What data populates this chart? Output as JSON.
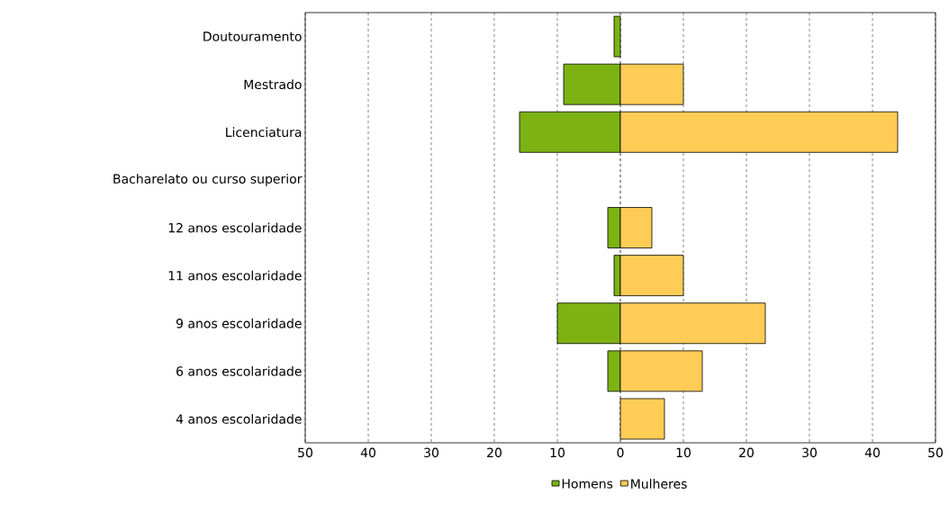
{
  "chart_data": {
    "type": "bar",
    "orientation": "horizontal",
    "categories": [
      "Doutouramento",
      "Mestrado",
      "Licenciatura",
      "Bacharelato ou curso superior",
      "12 anos escolaridade",
      "11 anos escolaridade",
      "9 anos escolaridade",
      "6 anos escolaridade",
      "4 anos escolaridade"
    ],
    "series": [
      {
        "name": "Homens",
        "color": "#7cb212",
        "values": [
          -1,
          -9,
          -16,
          0,
          -2,
          -1,
          -10,
          -2,
          0
        ]
      },
      {
        "name": "Mulheres",
        "color": "#ffcc55",
        "values": [
          0,
          10,
          44,
          0,
          5,
          10,
          23,
          13,
          7
        ]
      }
    ],
    "xlim": [
      -50,
      50
    ],
    "xticks": [
      {
        "value": -50,
        "label": "50"
      },
      {
        "value": -40,
        "label": "40"
      },
      {
        "value": -30,
        "label": "30"
      },
      {
        "value": -20,
        "label": "20"
      },
      {
        "value": -10,
        "label": "10"
      },
      0,
      10,
      20,
      30,
      40,
      50
    ],
    "stacked": true,
    "grid": "x",
    "legend": "bottom"
  }
}
